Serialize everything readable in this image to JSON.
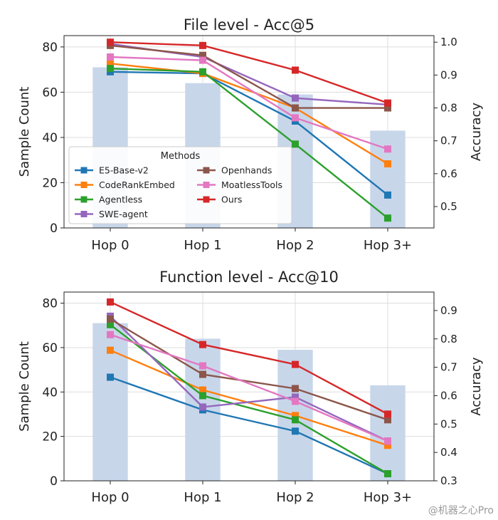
{
  "chart_data": [
    {
      "type": "bar+line",
      "title": "File level - Acc@5",
      "xlabel": "",
      "ylabel_left": "Sample Count",
      "ylabel_right": "Accuracy",
      "categories": [
        "Hop 0",
        "Hop 1",
        "Hop 2",
        "Hop 3+"
      ],
      "ylim_left": [
        0,
        85
      ],
      "ylim_right": [
        0.435,
        1.02
      ],
      "yticks_left": [
        "0",
        "20",
        "40",
        "60",
        "80"
      ],
      "yticks_right": [
        "0.5",
        "0.6",
        "0.7",
        "0.8",
        "0.9",
        "1.0"
      ],
      "bars": {
        "name": "Sample Count",
        "values": [
          71,
          64,
          59,
          43
        ]
      },
      "legend": {
        "title": "Methods",
        "position": "lower-left"
      },
      "series": [
        {
          "name": "E5-Base-v2",
          "values": [
            0.91,
            0.905,
            0.76,
            0.535
          ]
        },
        {
          "name": "CodeRankEmbed",
          "values": [
            0.935,
            0.905,
            0.8,
            0.63
          ]
        },
        {
          "name": "Agentless",
          "values": [
            0.92,
            0.91,
            0.69,
            0.465
          ]
        },
        {
          "name": "SWE-agent",
          "values": [
            0.995,
            0.955,
            0.83,
            0.81
          ]
        },
        {
          "name": "Openhands",
          "values": [
            0.99,
            0.96,
            0.8,
            0.8
          ]
        },
        {
          "name": "MoatlessTools",
          "values": [
            0.955,
            0.945,
            0.77,
            0.675
          ]
        },
        {
          "name": "Ours",
          "values": [
            1.0,
            0.99,
            0.915,
            0.815
          ]
        }
      ],
      "grid": true
    },
    {
      "type": "bar+line",
      "title": "Function level - Acc@10",
      "xlabel": "",
      "ylabel_left": "Sample Count",
      "ylabel_right": "Accuracy",
      "categories": [
        "Hop 0",
        "Hop 1",
        "Hop 2",
        "Hop 3+"
      ],
      "ylim_left": [
        0,
        85
      ],
      "ylim_right": [
        0.3,
        0.965
      ],
      "yticks_left": [
        "0",
        "20",
        "40",
        "60",
        "80"
      ],
      "yticks_right": [
        "0.3",
        "0.4",
        "0.5",
        "0.6",
        "0.7",
        "0.8",
        "0.9"
      ],
      "bars": {
        "name": "Sample Count",
        "values": [
          71,
          64,
          59,
          43
        ]
      },
      "series": [
        {
          "name": "E5-Base-v2",
          "values": [
            0.665,
            0.55,
            0.475,
            0.325
          ]
        },
        {
          "name": "CodeRankEmbed",
          "values": [
            0.76,
            0.62,
            0.53,
            0.425
          ]
        },
        {
          "name": "Agentless",
          "values": [
            0.85,
            0.6,
            0.515,
            0.325
          ]
        },
        {
          "name": "SWE-agent",
          "values": [
            0.88,
            0.56,
            0.595,
            0.44
          ]
        },
        {
          "name": "Openhands",
          "values": [
            0.87,
            0.675,
            0.625,
            0.515
          ]
        },
        {
          "name": "MoatlessTools",
          "values": [
            0.815,
            0.705,
            0.58,
            0.44
          ]
        },
        {
          "name": "Ours",
          "values": [
            0.93,
            0.78,
            0.71,
            0.535
          ]
        }
      ],
      "grid": true
    }
  ],
  "colors": {
    "E5-Base-v2": "#1f77b4",
    "CodeRankEmbed": "#ff7f0e",
    "Agentless": "#2ca02c",
    "SWE-agent": "#9467bd",
    "Openhands": "#8c564b",
    "MoatlessTools": "#e377c2",
    "Ours": "#d62728",
    "bars": "#c8d6ea",
    "grid": "#dddddd",
    "axis": "#222222"
  },
  "watermark": "@机器之心Pro"
}
